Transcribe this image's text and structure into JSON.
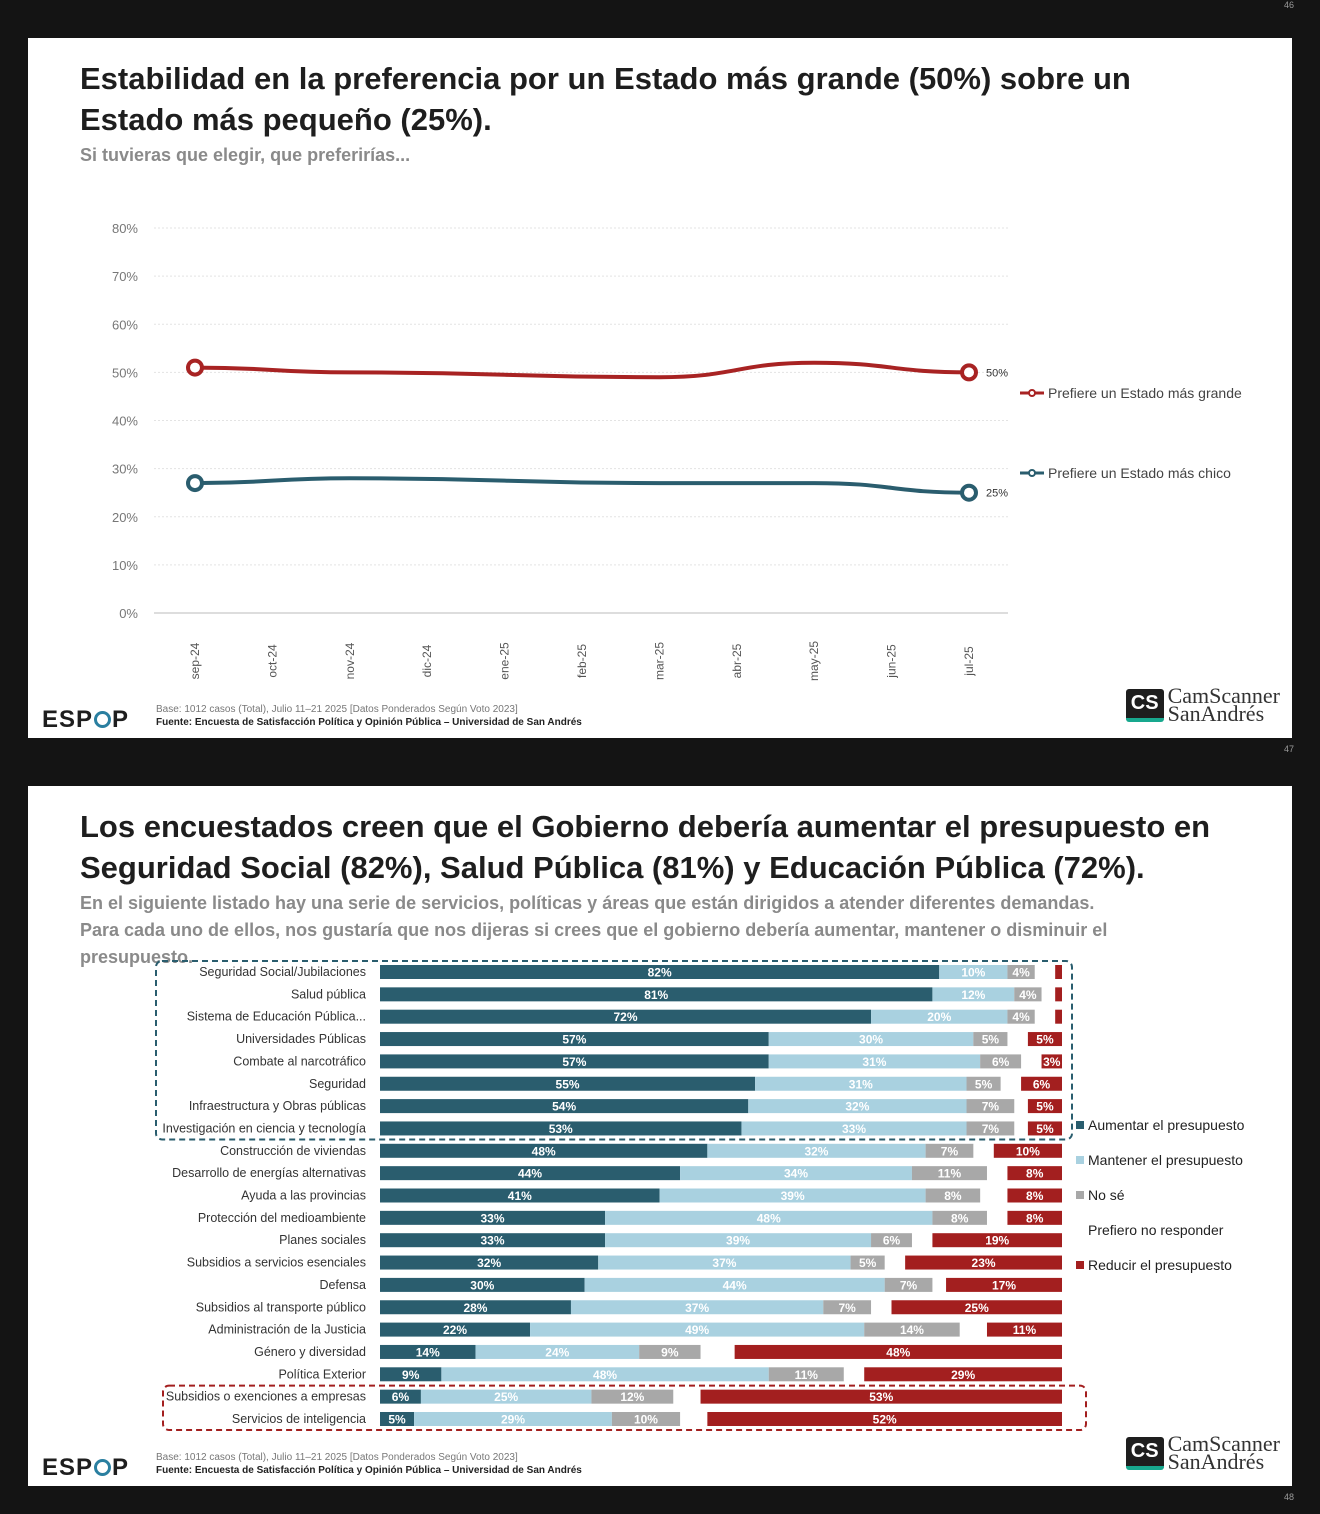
{
  "page_numbers": {
    "prev": "46",
    "slide1": "47",
    "slide2": "48"
  },
  "slide1": {
    "title_line1": "Estabilidad en la preferencia por un Estado más grande (50%) sobre un",
    "title_line2": "Estado más pequeño (25%).",
    "subtitle": "Si tuvieras que elegir, que preferirías...",
    "footer_base": "Base: 1012 casos (Total), Julio 11–21 2025 [Datos Ponderados Según Voto 2023]",
    "footer_source": "Fuente: Encuesta de Satisfacción Política y Opinión Pública – Universidad de San Andrés"
  },
  "slide2": {
    "title_line1": "Los encuestados creen que el Gobierno debería aumentar el presupuesto en",
    "title_line2": "Seguridad Social (82%), Salud Pública (81%) y Educación Pública (72%).",
    "subtitle_line1": "En el siguiente listado hay una serie de servicios, políticas y áreas que están dirigidos a atender diferentes demandas.",
    "subtitle_line2": "Para cada uno de ellos, nos gustaría que nos dijeras si crees que el gobierno debería aumentar, mantener o disminuir el",
    "subtitle_line3": "presupuesto.",
    "footer_base": "Base: 1012 casos (Total), Julio 11–21 2025 [Datos Ponderados Según Voto 2023]",
    "footer_source": "Fuente: Encuesta de Satisfacción Política y Opinión Pública – Universidad de San Andrés"
  },
  "logo": {
    "text_left": "ESP",
    "text_right": "P"
  },
  "watermark": {
    "badge": "CS",
    "line1": "CamScanner",
    "line2": "SanAndrés"
  },
  "chart_data": [
    {
      "type": "line",
      "x": [
        "sep-24",
        "oct-24",
        "nov-24",
        "dic-24",
        "ene-25",
        "feb-25",
        "mar-25",
        "abr-25",
        "may-25",
        "jun-25",
        "jul-25"
      ],
      "ylim": [
        0,
        80
      ],
      "yticks": [
        "0%",
        "10%",
        "20%",
        "30%",
        "40%",
        "50%",
        "60%",
        "70%",
        "80%"
      ],
      "series": [
        {
          "name": "Prefiere un Estado más grande",
          "color": "#a82323",
          "values": [
            51,
            null,
            50,
            null,
            null,
            null,
            49,
            null,
            52,
            null,
            50
          ],
          "end_label": "50%"
        },
        {
          "name": "Prefiere un Estado más chico",
          "color": "#2a5d6e",
          "values": [
            27,
            null,
            28,
            null,
            null,
            null,
            27,
            null,
            27,
            null,
            25
          ],
          "end_label": "25%"
        }
      ],
      "grid": true,
      "legend": "right"
    },
    {
      "type": "bar",
      "stacked": true,
      "orientation": "horizontal",
      "categories": [
        "Seguridad Social/Jubilaciones",
        "Salud pública",
        "Sistema de Educación Pública...",
        "Universidades Públicas",
        "Combate al narcotráfico",
        "Seguridad",
        "Infraestructura y Obras públicas",
        "Investigación en ciencia y tecnología",
        "Construcción de viviendas",
        "Desarrollo de energías alternativas",
        "Ayuda a las provincias",
        "Protección del medioambiente",
        "Planes sociales",
        "Subsidios a servicios esenciales",
        "Defensa",
        "Subsidios al transporte público",
        "Administración de la  Justicia",
        "Género y diversidad",
        "Política Exterior",
        "Subsidios o exenciones a empresas",
        "Servicios de inteligencia"
      ],
      "series": [
        {
          "name": "Aumentar el presupuesto",
          "color": "#2a5d6e",
          "values": [
            82,
            81,
            72,
            57,
            57,
            55,
            54,
            53,
            48,
            44,
            41,
            33,
            33,
            32,
            30,
            28,
            22,
            14,
            9,
            6,
            5
          ],
          "labels": [
            "82%",
            "81%",
            "72%",
            "57%",
            "57%",
            "55%",
            "54%",
            "53%",
            "48%",
            "44%",
            "41%",
            "33%",
            "33%",
            "32%",
            "30%",
            "28%",
            "22%",
            "14%",
            "9%",
            "6%",
            "5%"
          ]
        },
        {
          "name": "Mantener el presupuesto",
          "color": "#a9d1e0",
          "values": [
            10,
            12,
            20,
            30,
            31,
            31,
            32,
            33,
            32,
            34,
            39,
            48,
            39,
            37,
            44,
            37,
            49,
            24,
            48,
            25,
            29
          ],
          "labels": [
            "10%",
            "12%",
            "20%",
            "30%",
            "31%",
            "31%",
            "32%",
            "33%",
            "32%",
            "34%",
            "39%",
            "48%",
            "39%",
            "37%",
            "44%",
            "37%",
            "49%",
            "24%",
            "48%",
            "25%",
            "29%"
          ]
        },
        {
          "name": "No sé",
          "color": "#a8a8a8",
          "values": [
            4,
            4,
            4,
            5,
            6,
            5,
            7,
            7,
            7,
            11,
            8,
            8,
            6,
            5,
            7,
            7,
            14,
            9,
            11,
            12,
            10
          ],
          "labels": [
            "4%",
            "4%",
            "4%",
            "5%",
            "6%",
            "5%",
            "7%",
            "7%",
            "7%",
            "11%",
            "8%",
            "8%",
            "6%",
            "5%",
            "7%",
            "7%",
            "14%",
            "9%",
            "11%",
            "12%",
            "10%"
          ]
        },
        {
          "name": "Prefiero no responder",
          "color": "#ffffff",
          "values": [
            3,
            2,
            3,
            3,
            3,
            3,
            2,
            2,
            3,
            3,
            4,
            3,
            3,
            3,
            2,
            3,
            4,
            5,
            3,
            4,
            4
          ]
        },
        {
          "name": "Reducir el presupuesto",
          "color": "#a31f1f",
          "values": [
            1,
            1,
            1,
            5,
            3,
            6,
            5,
            5,
            10,
            8,
            8,
            8,
            19,
            23,
            17,
            25,
            11,
            48,
            29,
            53,
            52
          ],
          "labels": [
            "",
            "",
            "",
            "5%",
            "3%",
            "6%",
            "5%",
            "5%",
            "10%",
            "8%",
            "8%",
            "8%",
            "19%",
            "23%",
            "17%",
            "25%",
            "11%",
            "48%",
            "29%",
            "53%",
            "52%"
          ]
        }
      ],
      "legend": "right",
      "highlight_groups": [
        {
          "rows": [
            0,
            7
          ],
          "color": "#2a5d6e"
        },
        {
          "rows": [
            19,
            20
          ],
          "color": "#a31f1f"
        }
      ]
    }
  ]
}
